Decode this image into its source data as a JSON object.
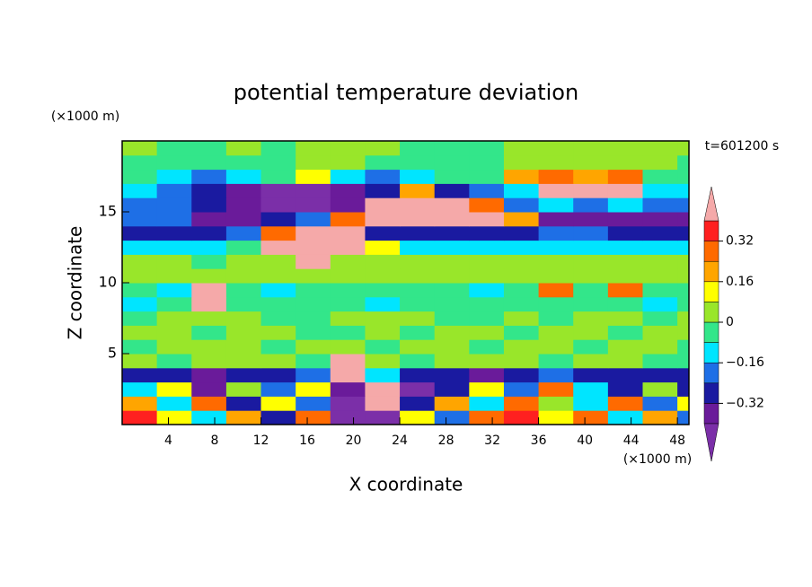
{
  "chart_data": {
    "type": "contour",
    "title": "potential temperature deviation",
    "xlabel": "X coordinate",
    "ylabel": "Z coordinate",
    "xunit": "(×1000 m)",
    "yunit": "(×1000 m)",
    "annotation": "t=601200 s",
    "xlim": [
      0,
      49
    ],
    "ylim": [
      0,
      20
    ],
    "xticks": [
      4,
      8,
      12,
      16,
      20,
      24,
      28,
      32,
      36,
      40,
      44,
      48
    ],
    "yticks": [
      5,
      10,
      15
    ],
    "x": [
      1.5,
      4.5,
      7.5,
      10.5,
      13.5,
      16.5,
      19.5,
      22.5,
      25.5,
      28.5,
      31.5,
      34.5,
      37.5,
      40.5,
      43.5,
      46.5,
      49.5
    ],
    "y": [
      0.5,
      1.5,
      2.5,
      3.5,
      4.5,
      5.5,
      6.5,
      7.5,
      8.5,
      9.5,
      10.5,
      11.5,
      12.5,
      13.5,
      14.5,
      15.5,
      16.5,
      17.5,
      18.5,
      19.5
    ],
    "z": [
      [
        0.36,
        0.1,
        -0.1,
        0.2,
        -0.3,
        0.3,
        -0.45,
        -0.45,
        0.1,
        -0.2,
        0.3,
        0.35,
        0.1,
        0.3,
        -0.1,
        0.2,
        -0.2
      ],
      [
        0.2,
        -0.1,
        0.3,
        -0.3,
        0.1,
        -0.2,
        -0.45,
        0.45,
        -0.3,
        0.2,
        -0.1,
        0.25,
        0.05,
        -0.1,
        0.3,
        -0.2,
        0.1
      ],
      [
        -0.1,
        0.15,
        -0.35,
        0.05,
        -0.2,
        0.1,
        -0.4,
        0.45,
        -0.45,
        -0.3,
        0.1,
        -0.2,
        0.3,
        -0.1,
        -0.3,
        0.05,
        -0.25
      ],
      [
        -0.3,
        -0.25,
        -0.35,
        -0.3,
        -0.3,
        -0.2,
        0.45,
        -0.1,
        -0.3,
        -0.3,
        -0.35,
        -0.3,
        -0.2,
        -0.3,
        -0.3,
        -0.25,
        -0.3
      ],
      [
        0.04,
        -0.04,
        0.04,
        0.05,
        0.04,
        -0.04,
        0.45,
        0.04,
        -0.04,
        0.04,
        0.04,
        0.05,
        -0.04,
        0.04,
        0.04,
        -0.04,
        -0.04
      ],
      [
        -0.04,
        0.04,
        0.05,
        0.04,
        -0.04,
        0.04,
        0.04,
        -0.04,
        0.04,
        0.04,
        -0.04,
        0.04,
        0.04,
        -0.04,
        0.04,
        0.04,
        -0.04
      ],
      [
        0.04,
        0.04,
        -0.04,
        0.04,
        0.04,
        -0.04,
        -0.04,
        0.04,
        -0.04,
        0.04,
        0.04,
        -0.04,
        0.04,
        0.04,
        -0.04,
        0.04,
        0.04
      ],
      [
        -0.04,
        0.04,
        0.04,
        0.04,
        -0.04,
        -0.04,
        0.04,
        0.04,
        0.04,
        -0.04,
        -0.04,
        0.04,
        -0.04,
        0.04,
        0.04,
        -0.04,
        0.04
      ],
      [
        -0.12,
        -0.04,
        0.45,
        -0.04,
        -0.04,
        -0.04,
        -0.04,
        -0.12,
        -0.04,
        -0.04,
        -0.04,
        -0.04,
        -0.04,
        -0.04,
        -0.04,
        -0.12,
        -0.04
      ],
      [
        -0.04,
        -0.12,
        0.45,
        -0.04,
        -0.12,
        -0.04,
        -0.04,
        -0.04,
        -0.04,
        -0.04,
        -0.12,
        -0.04,
        0.3,
        -0.04,
        0.3,
        -0.04,
        -0.04
      ],
      [
        0.04,
        0.04,
        0.04,
        0.04,
        0.04,
        0.04,
        0.04,
        0.04,
        0.04,
        0.04,
        0.04,
        0.04,
        0.04,
        0.04,
        0.04,
        0.04,
        0.04
      ],
      [
        0.04,
        0.04,
        -0.04,
        0.04,
        0.04,
        0.45,
        0.04,
        0.04,
        0.04,
        0.04,
        0.04,
        0.04,
        0.04,
        0.04,
        0.04,
        0.04,
        0.04
      ],
      [
        -0.12,
        -0.12,
        -0.12,
        -0.04,
        0.45,
        0.45,
        0.45,
        0.1,
        -0.12,
        -0.12,
        -0.12,
        -0.12,
        -0.12,
        -0.12,
        -0.12,
        -0.12,
        -0.12
      ],
      [
        -0.3,
        -0.3,
        -0.3,
        -0.2,
        0.3,
        0.45,
        0.45,
        -0.3,
        -0.3,
        -0.3,
        -0.3,
        -0.3,
        -0.2,
        -0.2,
        -0.3,
        -0.3,
        -0.3
      ],
      [
        -0.2,
        -0.2,
        -0.38,
        -0.38,
        -0.3,
        -0.2,
        0.3,
        0.45,
        0.45,
        0.45,
        0.45,
        0.2,
        -0.38,
        -0.38,
        -0.38,
        -0.38,
        -0.38
      ],
      [
        -0.2,
        -0.2,
        -0.3,
        -0.38,
        -0.45,
        -0.45,
        -0.38,
        0.45,
        0.45,
        0.45,
        0.3,
        -0.2,
        -0.12,
        -0.2,
        -0.12,
        -0.2,
        -0.2
      ],
      [
        -0.12,
        -0.2,
        -0.3,
        -0.38,
        -0.45,
        -0.45,
        -0.38,
        -0.3,
        0.2,
        -0.3,
        -0.2,
        -0.12,
        0.45,
        0.45,
        0.45,
        -0.12,
        -0.12
      ],
      [
        -0.04,
        -0.12,
        -0.2,
        -0.12,
        -0.04,
        0.1,
        -0.12,
        -0.2,
        -0.12,
        -0.04,
        -0.04,
        0.2,
        0.3,
        0.2,
        0.3,
        -0.04,
        -0.04
      ],
      [
        -0.04,
        -0.04,
        -0.04,
        -0.04,
        -0.04,
        0.04,
        0.05,
        -0.04,
        -0.04,
        -0.04,
        -0.04,
        0.04,
        0.04,
        0.05,
        0.04,
        0.04,
        -0.04
      ],
      [
        0.04,
        -0.04,
        -0.04,
        0.04,
        -0.04,
        0.04,
        0.04,
        0.04,
        -0.04,
        -0.04,
        -0.04,
        0.04,
        0.04,
        0.04,
        0.04,
        0.04,
        0.04
      ]
    ],
    "levels": [
      -0.4,
      -0.32,
      -0.24,
      -0.16,
      -0.08,
      0,
      0.08,
      0.16,
      0.24,
      0.32,
      0.4
    ],
    "colors": [
      "#7b2fa8",
      "#6a1b9a",
      "#1a1aa0",
      "#1e6fe6",
      "#00e5ff",
      "#33e68a",
      "#99e62a",
      "#ffff00",
      "#ffa500",
      "#ff6a00",
      "#ff2020",
      "#f5a9a9"
    ],
    "colorbar_ticks": [
      0.32,
      0.16,
      0,
      {
        "value": -0.16,
        "label": "−0.16"
      },
      {
        "value": -0.32,
        "label": "−0.32"
      }
    ]
  }
}
